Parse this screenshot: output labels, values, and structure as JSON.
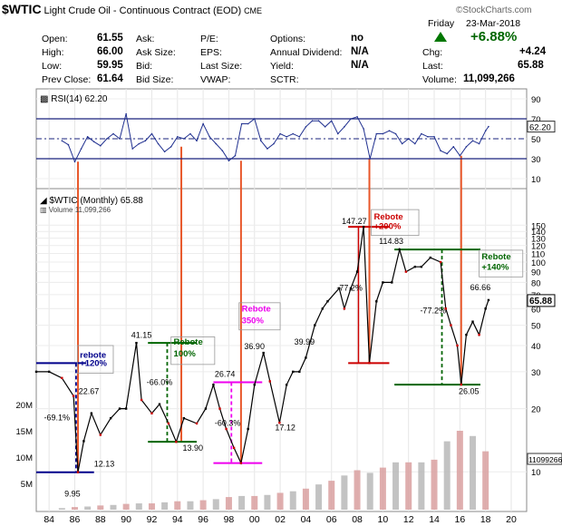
{
  "header": {
    "symbol": "$WTIC",
    "name": "Light Crude Oil - Continuous Contract (EOD)",
    "exchange": "CME",
    "brand": "©StockCharts.com",
    "day": "Friday",
    "date": "23-Mar-2018",
    "change_pct": "+6.88%",
    "up_arrow": "triangle-up-icon",
    "fields": {
      "open_label": "Open:",
      "open": "61.55",
      "high_label": "High:",
      "high": "66.00",
      "low_label": "Low:",
      "low": "59.95",
      "prevclose_label": "Prev Close:",
      "prevclose": "61.64",
      "ask_label": "Ask:",
      "asksize_label": "Ask Size:",
      "bid_label": "Bid:",
      "bidsize_label": "Bid Size:",
      "pe_label": "P/E:",
      "eps_label": "EPS:",
      "lastsize_label": "Last Size:",
      "vwap_label": "VWAP:",
      "options_label": "Options:",
      "options": "no",
      "dividend_label": "Annual Dividend:",
      "dividend": "N/A",
      "yield_label": "Yield:",
      "yield": "N/A",
      "sctr_label": "SCTR:",
      "chg_label": "Chg:",
      "chg": "+4.24",
      "last_label": "Last:",
      "last": "65.88",
      "volume_label": "Volume:",
      "volume": "11,099,266"
    }
  },
  "colors": {
    "price_up": "#000000",
    "price_down": "#cc0000",
    "rsi_line": "#1f2f8f",
    "rsi_levels": "#1a237e",
    "orange_lines": "#e8572a",
    "navy_marker": "#00008b",
    "green_marker": "#006400",
    "red_marker": "#cc0000",
    "magenta_marker": "#ee00ee",
    "volume_bars": "#d9a0a0",
    "volume_bars_grey": "#b8b8b8"
  },
  "chart_data": [
    {
      "type": "line",
      "panel": "rsi",
      "legend": "RSI(14) 62.20",
      "current_value": "62.20",
      "levels": [
        70,
        30
      ],
      "ylim": [
        0,
        100
      ],
      "ytick_labels": [
        "90",
        "70",
        "50",
        "30",
        "10"
      ],
      "x": [
        1985.0,
        1985.5,
        1986.0,
        1986.5,
        1987.0,
        1987.5,
        1988.0,
        1988.5,
        1989.0,
        1989.5,
        1990.0,
        1990.5,
        1991.0,
        1991.5,
        1992.0,
        1992.5,
        1993.0,
        1993.5,
        1994.0,
        1994.5,
        1995.0,
        1995.5,
        1996.0,
        1996.5,
        1997.0,
        1997.5,
        1998.0,
        1998.5,
        1999.0,
        1999.5,
        2000.0,
        2000.5,
        2001.0,
        2001.5,
        2002.0,
        2002.5,
        2003.0,
        2003.5,
        2004.0,
        2004.5,
        2005.0,
        2005.5,
        2006.0,
        2006.5,
        2007.0,
        2007.5,
        2008.0,
        2008.5,
        2009.0,
        2009.5,
        2010.0,
        2010.5,
        2011.0,
        2011.5,
        2012.0,
        2012.5,
        2013.0,
        2013.5,
        2014.0,
        2014.5,
        2015.0,
        2015.5,
        2016.0,
        2016.5,
        2017.0,
        2017.5,
        2018.0,
        2018.23
      ],
      "values": [
        48,
        44,
        27,
        40,
        52,
        47,
        43,
        50,
        55,
        50,
        75,
        40,
        45,
        48,
        55,
        45,
        37,
        42,
        52,
        50,
        55,
        48,
        65,
        52,
        45,
        38,
        28,
        33,
        65,
        65,
        70,
        48,
        40,
        45,
        55,
        52,
        55,
        52,
        62,
        68,
        68,
        62,
        68,
        55,
        62,
        70,
        72,
        60,
        30,
        55,
        55,
        58,
        55,
        45,
        50,
        45,
        55,
        52,
        52,
        38,
        35,
        42,
        33,
        42,
        48,
        45,
        58,
        62.2
      ]
    },
    {
      "type": "line",
      "panel": "price",
      "legend": "$WTIC (Monthly) 65.88",
      "yscale": "log",
      "ylim": [
        7,
        180
      ],
      "ytick_labels": [
        "150",
        "140",
        "130",
        "120",
        "110",
        "100",
        "90",
        "80",
        "70",
        "60",
        "50",
        "40",
        "30",
        "20",
        "10"
      ],
      "xtick_labels": [
        "84",
        "86",
        "88",
        "90",
        "92",
        "94",
        "96",
        "98",
        "00",
        "02",
        "04",
        "06",
        "08",
        "10",
        "12",
        "14",
        "16",
        "18",
        "20"
      ],
      "x": [
        1983.0,
        1984.0,
        1985.0,
        1985.9,
        1986.25,
        1986.7,
        1987.3,
        1988.0,
        1988.8,
        1989.5,
        1990.0,
        1990.8,
        1991.2,
        1992.0,
        1992.6,
        1993.3,
        1993.9,
        1994.5,
        1995.5,
        1996.2,
        1996.8,
        1997.3,
        1997.8,
        1998.4,
        1998.95,
        1999.5,
        2000.0,
        2000.7,
        2001.2,
        2001.95,
        2002.5,
        2003.0,
        2003.5,
        2004.0,
        2004.7,
        2005.3,
        2005.7,
        2006.6,
        2007.0,
        2007.5,
        2008.0,
        2008.5,
        2008.95,
        2009.5,
        2010.0,
        2010.7,
        2011.3,
        2011.8,
        2012.5,
        2013.0,
        2013.7,
        2014.5,
        2014.9,
        2015.3,
        2015.8,
        2016.1,
        2016.5,
        2017.0,
        2017.5,
        2018.0,
        2018.23
      ],
      "values": [
        30,
        30,
        28,
        23,
        9.95,
        14,
        19,
        15,
        18,
        20,
        20,
        41.15,
        22,
        19,
        21,
        17,
        13.9,
        18,
        17,
        20,
        26,
        20,
        16,
        13,
        11,
        16,
        26,
        36.9,
        27,
        17.12,
        26,
        30,
        30,
        35,
        50,
        60,
        65,
        75,
        60,
        75,
        90,
        147.27,
        33,
        65,
        80,
        80,
        114.83,
        90,
        95,
        95,
        105,
        100,
        60,
        50,
        40,
        26.05,
        45,
        52,
        45,
        60,
        65.88
      ],
      "last_label": "65.88",
      "annotations": [
        {
          "text": "9.95"
        },
        {
          "text": "22.67"
        },
        {
          "text": "-69.1%"
        },
        {
          "text": "rebote"
        },
        {
          "text": "+120%"
        },
        {
          "text": "12.13"
        },
        {
          "text": "41.15"
        },
        {
          "text": "-66.0%"
        },
        {
          "text": "Rebote"
        },
        {
          "text": "100%"
        },
        {
          "text": "13.90"
        },
        {
          "text": "26.74"
        },
        {
          "text": "-60.3%"
        },
        {
          "text": "Rebote"
        },
        {
          "text": "350%"
        },
        {
          "text": "36.90"
        },
        {
          "text": "39.99"
        },
        {
          "text": "17.12"
        },
        {
          "text": "147.27"
        },
        {
          "text": "-77.2%"
        },
        {
          "text": "Rebote"
        },
        {
          "text": "+200%"
        },
        {
          "text": "114.83"
        },
        {
          "text": "-77.2%"
        },
        {
          "text": "Rebote"
        },
        {
          "text": "+140%"
        },
        {
          "text": "66.66"
        },
        {
          "text": "26.05"
        }
      ]
    },
    {
      "type": "bar",
      "panel": "volume",
      "legend": "Volume 11,099,266",
      "current_value": "11099266",
      "ytick_labels": [
        "20M",
        "15M",
        "10M",
        "5M"
      ],
      "x": [
        1985,
        1986,
        1987,
        1988,
        1989,
        1990,
        1991,
        1992,
        1993,
        1994,
        1995,
        1996,
        1997,
        1998,
        1999,
        2000,
        2001,
        2002,
        2003,
        2004,
        2005,
        2006,
        2007,
        2008,
        2009,
        2010,
        2011,
        2012,
        2013,
        2014,
        2015,
        2016,
        2017,
        2018
      ],
      "values": [
        0.3,
        0.5,
        0.6,
        0.8,
        0.9,
        1.1,
        1.2,
        1.2,
        1.4,
        1.6,
        1.6,
        1.8,
        2.0,
        2.4,
        2.6,
        2.6,
        2.8,
        3.2,
        3.5,
        4.0,
        4.8,
        5.5,
        6.5,
        7.5,
        7.0,
        8.0,
        9.0,
        9.0,
        9.0,
        9.5,
        13.0,
        15.0,
        14.0,
        11.1
      ]
    }
  ]
}
